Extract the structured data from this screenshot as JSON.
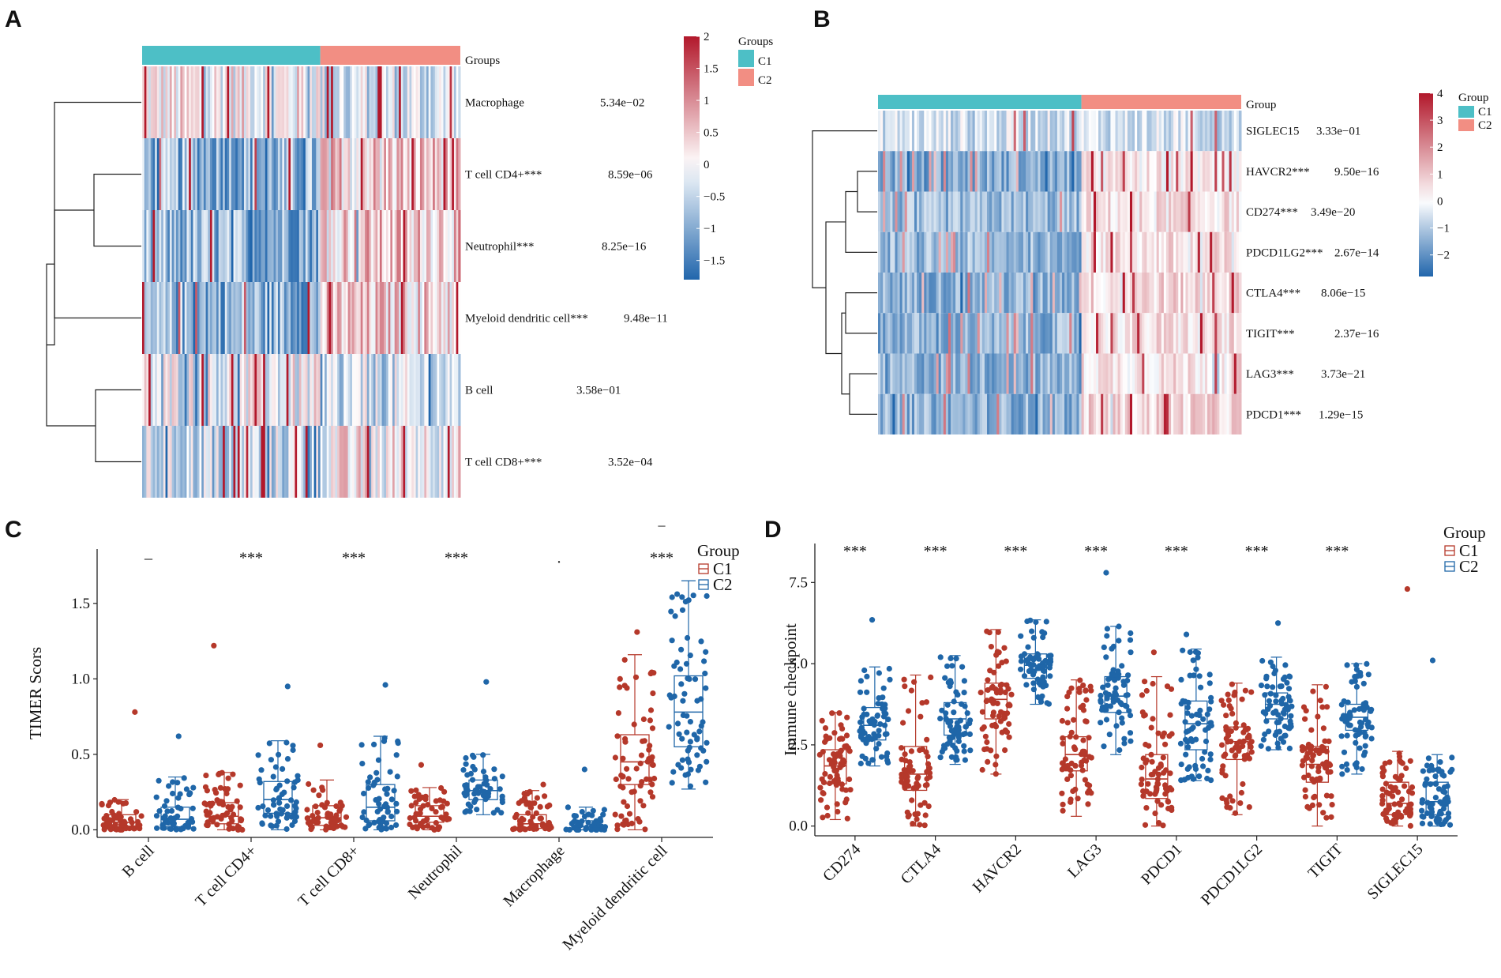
{
  "panels": {
    "a": "A",
    "b": "B",
    "c": "C",
    "d": "D"
  },
  "chart_data": [
    {
      "type": "heatmap",
      "panel": "A",
      "annotation_label": "Groups",
      "legend_title": "Groups",
      "groups": [
        "C1",
        "C2"
      ],
      "group_colors": [
        "#4dbfc6",
        "#f28e83"
      ],
      "group_split_fraction": 0.56,
      "rows": [
        {
          "label": "Macrophage",
          "p": "5.34e−02"
        },
        {
          "label": "T cell CD4+***",
          "p": "8.59e−06"
        },
        {
          "label": "Neutrophil***",
          "p": "8.25e−16"
        },
        {
          "label": "Myeloid dendritic cell***",
          "p": "9.48e−11"
        },
        {
          "label": "B cell",
          "p": "3.58e−01"
        },
        {
          "label": "T cell CD8+***",
          "p": "3.52e−04"
        }
      ],
      "colorbar_ticks": [
        "2",
        "1.5",
        "1",
        "0.5",
        "0",
        "−0.5",
        "−1",
        "−1.5"
      ],
      "colorbar_values": [
        2,
        1.5,
        1,
        0.5,
        0,
        -0.5,
        -1,
        -1.5
      ],
      "colorbar_range": [
        -1.8,
        2
      ],
      "low_color": "#2166ac",
      "mid_color": "#ffffff",
      "high_color": "#b2182b"
    },
    {
      "type": "heatmap",
      "panel": "B",
      "annotation_label": "Group",
      "legend_title": "Group",
      "groups": [
        "C1",
        "C2"
      ],
      "group_colors": [
        "#4dbfc6",
        "#f28e83"
      ],
      "group_split_fraction": 0.56,
      "rows": [
        {
          "label": "SIGLEC15",
          "p": "3.33e−01"
        },
        {
          "label": "HAVCR2***",
          "p": "9.50e−16"
        },
        {
          "label": "CD274***",
          "p": "3.49e−20"
        },
        {
          "label": "PDCD1LG2***",
          "p": "2.67e−14"
        },
        {
          "label": "CTLA4***",
          "p": "8.06e−15"
        },
        {
          "label": "TIGIT***",
          "p": "2.37e−16"
        },
        {
          "label": "LAG3***",
          "p": "3.73e−21"
        },
        {
          "label": "PDCD1***",
          "p": "1.29e−15"
        }
      ],
      "colorbar_ticks": [
        "4",
        "3",
        "2",
        "1",
        "0",
        "−1",
        "−2"
      ],
      "colorbar_values": [
        4,
        3,
        2,
        1,
        0,
        -1,
        -2
      ],
      "colorbar_range": [
        -2.8,
        4
      ],
      "low_color": "#2166ac",
      "mid_color": "#ffffff",
      "high_color": "#b2182b"
    },
    {
      "type": "box",
      "panel": "C",
      "ylabel": "TIMER Scors",
      "ylim": [
        -0.05,
        1.86
      ],
      "yticks": [
        0,
        0.5,
        1,
        1.5
      ],
      "ytick_labels": [
        "0.0",
        "0.5",
        "1.0",
        "1.5"
      ],
      "legend_title": "Group",
      "series": [
        {
          "name": "C1",
          "color": "#b5382a"
        },
        {
          "name": "C2",
          "color": "#1f66a8"
        }
      ],
      "categories": [
        "B cell",
        "T cell CD4+",
        "T cell CD8+",
        "Neutrophil",
        "Macrophage",
        "Myeloid dendritic cell"
      ],
      "significance": [
        "–",
        "***",
        "***",
        "***",
        ".",
        "***"
      ],
      "significance_y": 1.81,
      "outlier_marks": [
        {
          "category": 5,
          "y": 2.02,
          "label": "–"
        }
      ],
      "boxes": [
        [
          {
            "q1": 0.02,
            "median": 0.05,
            "q3": 0.1,
            "wlo": 0.0,
            "whi": 0.2,
            "max": 0.78,
            "n": 60
          },
          {
            "q1": 0.02,
            "median": 0.07,
            "q3": 0.15,
            "wlo": 0.0,
            "whi": 0.35,
            "max": 0.62,
            "n": 55
          }
        ],
        [
          {
            "q1": 0.04,
            "median": 0.09,
            "q3": 0.18,
            "wlo": 0.0,
            "whi": 0.38,
            "max": 1.22,
            "n": 60
          },
          {
            "q1": 0.11,
            "median": 0.2,
            "q3": 0.32,
            "wlo": 0.0,
            "whi": 0.59,
            "max": 0.95,
            "n": 60
          }
        ],
        [
          {
            "q1": 0.03,
            "median": 0.08,
            "q3": 0.16,
            "wlo": 0.0,
            "whi": 0.33,
            "max": 0.56,
            "n": 55
          },
          {
            "q1": 0.06,
            "median": 0.15,
            "q3": 0.3,
            "wlo": 0.0,
            "whi": 0.62,
            "max": 0.96,
            "n": 60
          }
        ],
        [
          {
            "q1": 0.05,
            "median": 0.09,
            "q3": 0.16,
            "wlo": 0.0,
            "whi": 0.28,
            "max": 0.43,
            "n": 55
          },
          {
            "q1": 0.2,
            "median": 0.26,
            "q3": 0.33,
            "wlo": 0.1,
            "whi": 0.5,
            "max": 0.98,
            "n": 60
          }
        ],
        [
          {
            "q1": 0.01,
            "median": 0.04,
            "q3": 0.1,
            "wlo": 0.0,
            "whi": 0.26,
            "max": 0.3,
            "n": 55
          },
          {
            "q1": 0.0,
            "median": 0.02,
            "q3": 0.06,
            "wlo": 0.0,
            "whi": 0.15,
            "max": 0.4,
            "n": 50
          }
        ],
        [
          {
            "q1": 0.3,
            "median": 0.45,
            "q3": 0.63,
            "wlo": 0.0,
            "whi": 1.16,
            "max": 1.31,
            "n": 70
          },
          {
            "q1": 0.55,
            "median": 0.78,
            "q3": 1.02,
            "wlo": 0.27,
            "whi": 1.65,
            "max": 1.65,
            "n": 70
          }
        ]
      ]
    },
    {
      "type": "box",
      "panel": "D",
      "ylabel": "Immune checkpoint",
      "ylim": [
        -0.3,
        8.7
      ],
      "yticks": [
        0,
        2.5,
        5,
        7.5
      ],
      "ytick_labels": [
        "0.0",
        "2.5",
        "5.0",
        "7.5"
      ],
      "legend_title": "Group",
      "series": [
        {
          "name": "C1",
          "color": "#b5382a"
        },
        {
          "name": "C2",
          "color": "#1f66a8"
        }
      ],
      "categories": [
        "CD274",
        "CTLA4",
        "HAVCR2",
        "LAG3",
        "PDCD1",
        "PDCD1LG2",
        "TIGIT",
        "SIGLEC15"
      ],
      "significance": [
        "***",
        "***",
        "***",
        "***",
        "***",
        "***",
        "***",
        ""
      ],
      "significance_y": 8.5,
      "outlier_marks": [],
      "boxes": [
        [
          {
            "q1": 1.3,
            "median": 1.85,
            "q3": 2.35,
            "wlo": 0.2,
            "whi": 3.5,
            "max": 3.5,
            "n": 70
          },
          {
            "q1": 2.65,
            "median": 3.1,
            "q3": 3.65,
            "wlo": 1.85,
            "whi": 4.9,
            "max": 6.35,
            "n": 70
          }
        ],
        [
          {
            "q1": 1.1,
            "median": 1.6,
            "q3": 2.45,
            "wlo": 0.0,
            "whi": 4.65,
            "max": 4.65,
            "n": 70
          },
          {
            "q1": 2.8,
            "median": 3.3,
            "q3": 3.8,
            "wlo": 1.9,
            "whi": 5.25,
            "max": 5.25,
            "n": 70
          }
        ],
        [
          {
            "q1": 3.3,
            "median": 3.9,
            "q3": 4.4,
            "wlo": 1.6,
            "whi": 6.05,
            "max": 6.05,
            "n": 70
          },
          {
            "q1": 4.55,
            "median": 4.95,
            "q3": 5.3,
            "wlo": 3.75,
            "whi": 6.35,
            "max": 6.35,
            "n": 70
          }
        ],
        [
          {
            "q1": 1.7,
            "median": 2.2,
            "q3": 2.75,
            "wlo": 0.3,
            "whi": 4.5,
            "max": 4.5,
            "n": 70
          },
          {
            "q1": 3.5,
            "median": 4.0,
            "q3": 4.6,
            "wlo": 2.2,
            "whi": 6.15,
            "max": 7.8,
            "n": 70
          }
        ],
        [
          {
            "q1": 0.85,
            "median": 1.45,
            "q3": 2.2,
            "wlo": 0.0,
            "whi": 4.6,
            "max": 5.35,
            "n": 70
          },
          {
            "q1": 2.35,
            "median": 3.15,
            "q3": 3.85,
            "wlo": 1.4,
            "whi": 5.45,
            "max": 5.9,
            "n": 70
          }
        ],
        [
          {
            "q1": 2.05,
            "median": 2.6,
            "q3": 3.05,
            "wlo": 0.35,
            "whi": 4.4,
            "max": 4.4,
            "n": 70
          },
          {
            "q1": 3.3,
            "median": 3.75,
            "q3": 4.1,
            "wlo": 2.35,
            "whi": 5.2,
            "max": 6.25,
            "n": 70
          }
        ],
        [
          {
            "q1": 1.35,
            "median": 1.9,
            "q3": 2.45,
            "wlo": 0.0,
            "whi": 4.35,
            "max": 4.35,
            "n": 70
          },
          {
            "q1": 2.95,
            "median": 3.35,
            "q3": 3.75,
            "wlo": 1.6,
            "whi": 5.0,
            "max": 5.0,
            "n": 70
          }
        ],
        [
          {
            "q1": 0.35,
            "median": 0.7,
            "q3": 1.35,
            "wlo": 0.0,
            "whi": 2.3,
            "max": 7.3,
            "n": 70
          },
          {
            "q1": 0.35,
            "median": 0.75,
            "q3": 1.35,
            "wlo": 0.0,
            "whi": 2.2,
            "max": 5.1,
            "n": 70
          }
        ]
      ]
    }
  ]
}
